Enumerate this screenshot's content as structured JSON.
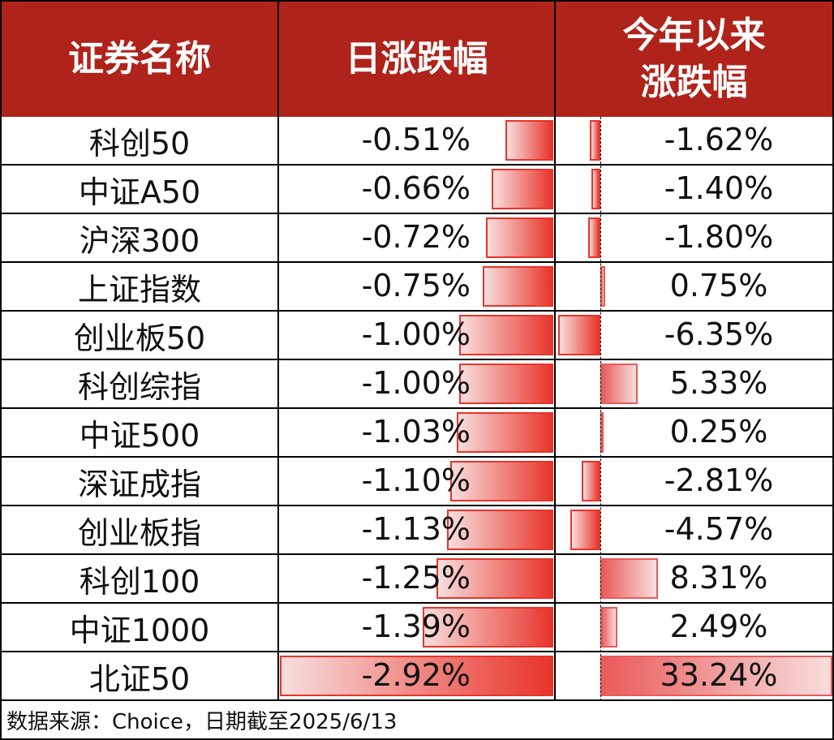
{
  "table": {
    "headers": [
      "证券名称",
      "日涨跌幅",
      "今年以来",
      "涨跌幅"
    ],
    "rows": [
      {
        "name": "科创50",
        "daily": "-0.51%",
        "ytd": "-1.62%"
      },
      {
        "name": "中证A50",
        "daily": "-0.66%",
        "ytd": "-1.40%"
      },
      {
        "name": "沪深300",
        "daily": "-0.72%",
        "ytd": "-1.80%"
      },
      {
        "name": "上证指数",
        "daily": "-0.75%",
        "ytd": "0.75%"
      },
      {
        "name": "创业板50",
        "daily": "-1.00%",
        "ytd": "-6.35%"
      },
      {
        "name": "科创综指",
        "daily": "-1.00%",
        "ytd": "5.33%"
      },
      {
        "name": "中证500",
        "daily": "-1.03%",
        "ytd": "0.25%"
      },
      {
        "name": "深证成指",
        "daily": "-1.10%",
        "ytd": "-2.81%"
      },
      {
        "name": "创业板指",
        "daily": "-1.13%",
        "ytd": "-4.57%"
      },
      {
        "name": "科创100",
        "daily": "-1.25%",
        "ytd": "8.31%"
      },
      {
        "name": "中证1000",
        "daily": "-1.39%",
        "ytd": "2.49%"
      },
      {
        "name": "北证50",
        "daily": "-2.92%",
        "ytd": "33.24%"
      }
    ]
  },
  "footer": "数据来源：Choice，日期截至2025/6/13",
  "colors": {
    "header_bg": "#b0231a",
    "bar_red": "#e8342a",
    "bar_pos": "#ea5a5a"
  },
  "chart_data": {
    "type": "table",
    "title": "",
    "columns": [
      "证券名称",
      "日涨跌幅",
      "今年以来涨跌幅"
    ],
    "categories": [
      "科创50",
      "中证A50",
      "沪深300",
      "上证指数",
      "创业板50",
      "科创综指",
      "中证500",
      "深证成指",
      "创业板指",
      "科创100",
      "中证1000",
      "北证50"
    ],
    "series": [
      {
        "name": "日涨跌幅",
        "unit": "%",
        "values": [
          -0.51,
          -0.66,
          -0.72,
          -0.75,
          -1.0,
          -1.0,
          -1.03,
          -1.1,
          -1.13,
          -1.25,
          -1.39,
          -2.92
        ]
      },
      {
        "name": "今年以来涨跌幅",
        "unit": "%",
        "values": [
          -1.62,
          -1.4,
          -1.8,
          0.75,
          -6.35,
          5.33,
          0.25,
          -2.81,
          -4.57,
          8.31,
          2.49,
          33.24
        ]
      }
    ],
    "notes": "数据来源：Choice，日期截至2025/6/13; in-cell data bars"
  }
}
